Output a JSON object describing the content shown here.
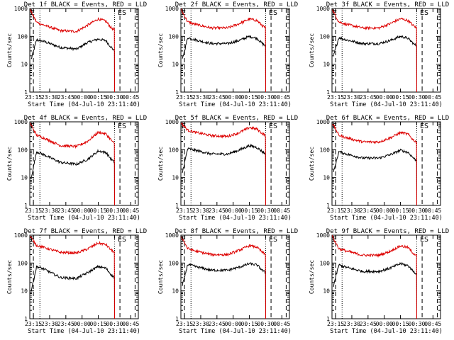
{
  "colors": {
    "events": "#000000",
    "lld": "#dd0000",
    "axes": "#000000"
  },
  "chart_data": [
    {
      "type": "line",
      "title": "Det 1f BLACK = Events, RED = LLD",
      "xlabel": "Start Time (04-Jul-10 23:11:40)",
      "ylabel": "Counts/sec",
      "yscale": "log",
      "ylim": [
        1,
        1000
      ],
      "xlim": [
        "23:11:40",
        "00:52:00"
      ],
      "x_ticks": [
        "23:15",
        "23:30",
        "23:45",
        "00:00",
        "00:15",
        "00:30",
        "00:45"
      ],
      "y_ticks": [
        "1",
        "10",
        "100",
        "1000"
      ],
      "markers": [
        "E",
        "S"
      ],
      "series": [
        {
          "name": "Events",
          "color": "#000000",
          "x": [
            "23:13",
            "23:18",
            "23:25",
            "23:40",
            "23:55",
            "00:05",
            "00:15",
            "00:22",
            "00:27",
            "00:30"
          ],
          "values": [
            15,
            75,
            65,
            40,
            35,
            60,
            80,
            70,
            40,
            30
          ]
        },
        {
          "name": "LLD",
          "color": "#dd0000",
          "x": [
            "23:12",
            "23:18",
            "23:25",
            "23:40",
            "23:55",
            "00:05",
            "00:15",
            "00:22",
            "00:27",
            "00:30"
          ],
          "values": [
            900,
            320,
            250,
            160,
            150,
            250,
            420,
            350,
            200,
            170
          ]
        }
      ]
    },
    {
      "type": "line",
      "title": "Det 2f BLACK = Events, RED = LLD",
      "xlabel": "Start Time (04-Jul-10 23:11:40)",
      "ylabel": "Counts/sec",
      "yscale": "log",
      "ylim": [
        1,
        1000
      ],
      "xlim": [
        "23:11:40",
        "00:52:00"
      ],
      "x_ticks": [
        "23:15",
        "23:30",
        "23:45",
        "00:00",
        "00:15",
        "00:30",
        "00:45"
      ],
      "y_ticks": [
        "1",
        "10",
        "100",
        "1000"
      ],
      "markers": [
        "E",
        "S"
      ],
      "series": [
        {
          "name": "Events",
          "color": "#000000",
          "x": [
            "23:13",
            "23:18",
            "23:25",
            "23:40",
            "23:55",
            "00:05",
            "00:15",
            "00:22",
            "00:27",
            "00:30"
          ],
          "values": [
            15,
            90,
            75,
            55,
            55,
            70,
            100,
            85,
            55,
            45
          ]
        },
        {
          "name": "LLD",
          "color": "#dd0000",
          "x": [
            "23:12",
            "23:18",
            "23:25",
            "23:40",
            "23:55",
            "00:05",
            "00:15",
            "00:22",
            "00:27",
            "00:30"
          ],
          "values": [
            900,
            330,
            270,
            200,
            200,
            280,
            420,
            370,
            240,
            200
          ]
        }
      ]
    },
    {
      "type": "line",
      "title": "Det 3f BLACK = Events, RED = LLD",
      "xlabel": "Start Time (04-Jul-10 23:11:40)",
      "ylabel": "Counts/sec",
      "yscale": "log",
      "ylim": [
        1,
        1000
      ],
      "xlim": [
        "23:11:40",
        "00:52:00"
      ],
      "x_ticks": [
        "23:15",
        "23:30",
        "23:45",
        "00:00",
        "00:15",
        "00:30",
        "00:45"
      ],
      "y_ticks": [
        "1",
        "10",
        "100",
        "1000"
      ],
      "markers": [
        "E",
        "S"
      ],
      "series": [
        {
          "name": "Events",
          "color": "#000000",
          "x": [
            "23:13",
            "23:18",
            "23:25",
            "23:40",
            "23:55",
            "00:05",
            "00:15",
            "00:22",
            "00:27",
            "00:30"
          ],
          "values": [
            20,
            90,
            75,
            55,
            55,
            70,
            100,
            85,
            55,
            45
          ]
        },
        {
          "name": "LLD",
          "color": "#dd0000",
          "x": [
            "23:12",
            "23:18",
            "23:25",
            "23:40",
            "23:55",
            "00:05",
            "00:15",
            "00:22",
            "00:27",
            "00:30"
          ],
          "values": [
            900,
            330,
            270,
            200,
            200,
            280,
            430,
            370,
            240,
            200
          ]
        }
      ]
    },
    {
      "type": "line",
      "title": "Det 4f BLACK = Events, RED = LLD",
      "xlabel": "Start Time (04-Jul-10 23:11:40)",
      "ylabel": "Counts/sec",
      "yscale": "log",
      "ylim": [
        1,
        1000
      ],
      "xlim": [
        "23:11:40",
        "00:52:00"
      ],
      "x_ticks": [
        "23:15",
        "23:30",
        "23:45",
        "00:00",
        "00:15",
        "00:30",
        "00:45"
      ],
      "y_ticks": [
        "1",
        "10",
        "100",
        "1000"
      ],
      "markers": [
        "E",
        "S"
      ],
      "series": [
        {
          "name": "Events",
          "color": "#000000",
          "x": [
            "23:13",
            "23:18",
            "23:25",
            "23:40",
            "23:55",
            "00:05",
            "00:15",
            "00:22",
            "00:27",
            "00:30"
          ],
          "values": [
            10,
            85,
            65,
            35,
            30,
            45,
            90,
            80,
            45,
            35
          ]
        },
        {
          "name": "LLD",
          "color": "#dd0000",
          "x": [
            "23:12",
            "23:18",
            "23:25",
            "23:40",
            "23:55",
            "00:05",
            "00:15",
            "00:22",
            "00:27",
            "00:30"
          ],
          "values": [
            900,
            330,
            260,
            140,
            130,
            200,
            420,
            370,
            220,
            160
          ]
        }
      ]
    },
    {
      "type": "line",
      "title": "Det 5f BLACK = Events, RED = LLD",
      "xlabel": "Start Time (04-Jul-10 23:11:40)",
      "ylabel": "Counts/sec",
      "yscale": "log",
      "ylim": [
        1,
        1000
      ],
      "xlim": [
        "23:11:40",
        "00:52:00"
      ],
      "x_ticks": [
        "23:15",
        "23:30",
        "23:45",
        "00:00",
        "00:15",
        "00:30",
        "00:45"
      ],
      "y_ticks": [
        "1",
        "10",
        "100",
        "1000"
      ],
      "markers": [
        "E",
        "S"
      ],
      "series": [
        {
          "name": "Events",
          "color": "#000000",
          "x": [
            "23:13",
            "23:18",
            "23:25",
            "23:40",
            "23:55",
            "00:05",
            "00:15",
            "00:22",
            "00:27",
            "00:30"
          ],
          "values": [
            15,
            110,
            95,
            70,
            70,
            95,
            140,
            120,
            85,
            70
          ]
        },
        {
          "name": "LLD",
          "color": "#dd0000",
          "x": [
            "23:12",
            "23:18",
            "23:25",
            "23:40",
            "23:55",
            "00:05",
            "00:15",
            "00:22",
            "00:27",
            "00:30"
          ],
          "values": [
            900,
            500,
            420,
            320,
            300,
            400,
            620,
            550,
            380,
            320
          ]
        }
      ]
    },
    {
      "type": "line",
      "title": "Det 6f BLACK = Events, RED = LLD",
      "xlabel": "Start Time (04-Jul-10 23:11:40)",
      "ylabel": "Counts/sec",
      "yscale": "log",
      "ylim": [
        1,
        1000
      ],
      "xlim": [
        "23:11:40",
        "00:52:00"
      ],
      "x_ticks": [
        "23:15",
        "23:30",
        "23:45",
        "00:00",
        "00:15",
        "00:30",
        "00:45"
      ],
      "y_ticks": [
        "1",
        "10",
        "100",
        "1000"
      ],
      "markers": [
        "E",
        "S"
      ],
      "series": [
        {
          "name": "Events",
          "color": "#000000",
          "x": [
            "23:13",
            "23:18",
            "23:25",
            "23:40",
            "23:55",
            "00:05",
            "00:15",
            "00:22",
            "00:27",
            "00:30"
          ],
          "values": [
            15,
            85,
            70,
            50,
            50,
            65,
            95,
            80,
            50,
            40
          ]
        },
        {
          "name": "LLD",
          "color": "#dd0000",
          "x": [
            "23:12",
            "23:18",
            "23:25",
            "23:40",
            "23:55",
            "00:05",
            "00:15",
            "00:22",
            "00:27",
            "00:30"
          ],
          "values": [
            900,
            330,
            270,
            190,
            190,
            260,
            410,
            360,
            220,
            190
          ]
        }
      ]
    },
    {
      "type": "line",
      "title": "Det 7f BLACK = Events, RED = LLD",
      "xlabel": "Start Time (04-Jul-10 23:11:40)",
      "ylabel": "Counts/sec",
      "yscale": "log",
      "ylim": [
        1,
        1000
      ],
      "xlim": [
        "23:11:40",
        "00:52:00"
      ],
      "x_ticks": [
        "23:15",
        "23:30",
        "23:45",
        "00:00",
        "00:15",
        "00:30",
        "00:45"
      ],
      "y_ticks": [
        "1",
        "10",
        "100",
        "1000"
      ],
      "markers": [
        "E",
        "S"
      ],
      "series": [
        {
          "name": "Events",
          "color": "#000000",
          "x": [
            "23:13",
            "23:18",
            "23:25",
            "23:40",
            "23:55",
            "00:05",
            "00:15",
            "00:22",
            "00:27",
            "00:30"
          ],
          "values": [
            10,
            75,
            60,
            30,
            28,
            45,
            75,
            65,
            38,
            30
          ]
        },
        {
          "name": "LLD",
          "color": "#dd0000",
          "x": [
            "23:12",
            "23:18",
            "23:25",
            "23:40",
            "23:55",
            "00:05",
            "00:15",
            "00:22",
            "00:27",
            "00:30"
          ],
          "values": [
            900,
            430,
            360,
            240,
            230,
            320,
            520,
            460,
            290,
            240
          ]
        }
      ]
    },
    {
      "type": "line",
      "title": "Det 8f BLACK = Events, RED = LLD",
      "xlabel": "Start Time (04-Jul-10 23:11:40)",
      "ylabel": "Counts/sec",
      "yscale": "log",
      "ylim": [
        1,
        1000
      ],
      "xlim": [
        "23:11:40",
        "00:52:00"
      ],
      "x_ticks": [
        "23:15",
        "23:30",
        "23:45",
        "00:00",
        "00:15",
        "00:30",
        "00:45"
      ],
      "y_ticks": [
        "1",
        "10",
        "100",
        "1000"
      ],
      "markers": [
        "E",
        "S"
      ],
      "series": [
        {
          "name": "Events",
          "color": "#000000",
          "x": [
            "23:13",
            "23:18",
            "23:25",
            "23:40",
            "23:55",
            "00:05",
            "00:15",
            "00:22",
            "00:27",
            "00:30"
          ],
          "values": [
            15,
            90,
            75,
            55,
            55,
            70,
            95,
            85,
            55,
            45
          ]
        },
        {
          "name": "LLD",
          "color": "#dd0000",
          "x": [
            "23:12",
            "23:18",
            "23:25",
            "23:40",
            "23:55",
            "00:05",
            "00:15",
            "00:22",
            "00:27",
            "00:30"
          ],
          "values": [
            900,
            330,
            270,
            200,
            200,
            280,
            420,
            370,
            240,
            200
          ]
        }
      ]
    },
    {
      "type": "line",
      "title": "Det 9f BLACK = Events, RED = LLD",
      "xlabel": "Start Time (04-Jul-10 23:11:40)",
      "ylabel": "Counts/sec",
      "yscale": "log",
      "ylim": [
        1,
        1000
      ],
      "xlim": [
        "23:11:40",
        "00:52:00"
      ],
      "x_ticks": [
        "23:15",
        "23:30",
        "23:45",
        "00:00",
        "00:15",
        "00:30",
        "00:45"
      ],
      "y_ticks": [
        "1",
        "10",
        "100",
        "1000"
      ],
      "markers": [
        "E",
        "S"
      ],
      "series": [
        {
          "name": "Events",
          "color": "#000000",
          "x": [
            "23:13",
            "23:18",
            "23:25",
            "23:40",
            "23:55",
            "00:05",
            "00:15",
            "00:22",
            "00:27",
            "00:30"
          ],
          "values": [
            15,
            85,
            70,
            50,
            50,
            65,
            95,
            80,
            50,
            40
          ]
        },
        {
          "name": "LLD",
          "color": "#dd0000",
          "x": [
            "23:12",
            "23:18",
            "23:25",
            "23:40",
            "23:55",
            "00:05",
            "00:15",
            "00:22",
            "00:27",
            "00:30"
          ],
          "values": [
            900,
            330,
            270,
            190,
            190,
            260,
            410,
            360,
            220,
            190
          ]
        }
      ]
    }
  ]
}
